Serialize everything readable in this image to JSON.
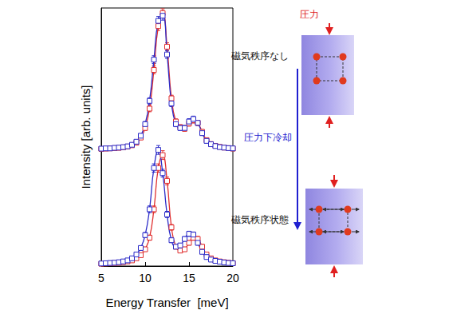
{
  "chart_data": {
    "type": "line",
    "x_label": "Energy Transfer  [meV]",
    "y_label": "Intensity [arb. units]",
    "xlim": [
      5,
      20
    ],
    "xticks": [
      5,
      10,
      15,
      20
    ],
    "ylim": [
      0,
      100
    ],
    "tick_labels": "x",
    "grid": false,
    "marker": "square",
    "line_style": "solid",
    "x": [
      5,
      5.5,
      6,
      6.5,
      7,
      7.5,
      8,
      8.5,
      9,
      9.5,
      10,
      10.5,
      11,
      11.5,
      12,
      12.5,
      13,
      13.5,
      14,
      14.5,
      15,
      15.5,
      16,
      16.5,
      17,
      17.5,
      18,
      18.5,
      19,
      19.5,
      20
    ],
    "series": [
      {
        "color": "#e03030",
        "values": [
          45.4,
          45.5,
          45.6,
          45.7,
          45.8,
          46.0,
          46.3,
          46.8,
          47.8,
          49.8,
          53.5,
          61,
          76,
          93,
          98,
          85,
          65,
          56,
          53.8,
          53.2,
          55.3,
          56.5,
          55.5,
          52,
          48.8,
          47.3,
          46.6,
          46.2,
          45.9,
          45.7,
          45.5
        ],
        "errors": [
          0.5,
          0.5,
          0.5,
          0.5,
          0.5,
          0.5,
          0.6,
          0.6,
          0.7,
          0.8,
          1,
          1.2,
          1.5,
          1.7,
          1.7,
          1.5,
          1.2,
          1,
          1,
          1,
          1.1,
          1.1,
          1,
          0.9,
          0.8,
          0.7,
          0.6,
          0.6,
          0.5,
          0.5,
          0.5
        ]
      },
      {
        "color": "#2b2bc8",
        "values": [
          45.5,
          45.6,
          45.6,
          45.8,
          45.9,
          46.1,
          46.4,
          47,
          48.2,
          50.5,
          55,
          64,
          80,
          95,
          97,
          82,
          63,
          55,
          53.5,
          53.5,
          56,
          57,
          55.5,
          51.5,
          48.5,
          47.2,
          46.5,
          46.1,
          45.9,
          45.7,
          45.6
        ],
        "errors": [
          0.5,
          0.5,
          0.5,
          0.5,
          0.5,
          0.5,
          0.6,
          0.6,
          0.7,
          0.8,
          1,
          1.2,
          1.5,
          1.7,
          1.7,
          1.5,
          1.2,
          1,
          1,
          1,
          1.1,
          1.1,
          1,
          0.9,
          0.8,
          0.7,
          0.6,
          0.6,
          0.5,
          0.5,
          0.5
        ]
      },
      {
        "color": "#e03030",
        "values": [
          0.9,
          1.0,
          1.1,
          1.2,
          1.3,
          1.5,
          1.8,
          2.2,
          3,
          4.2,
          6.5,
          11,
          22,
          38,
          43,
          33,
          15,
          7.5,
          6,
          6.5,
          9,
          11,
          10.5,
          7.5,
          4.5,
          3,
          2.2,
          1.8,
          1.5,
          1.3,
          1.1
        ],
        "errors": [
          0.4,
          0.4,
          0.4,
          0.4,
          0.4,
          0.4,
          0.5,
          0.5,
          0.6,
          0.7,
          0.8,
          1,
          1.3,
          1.6,
          1.7,
          1.5,
          1.1,
          0.9,
          0.8,
          0.8,
          0.9,
          1,
          1,
          0.9,
          0.7,
          0.6,
          0.5,
          0.5,
          0.4,
          0.4,
          0.4
        ]
      },
      {
        "color": "#2b2bc8",
        "values": [
          1.0,
          1.1,
          1.2,
          1.3,
          1.5,
          1.8,
          2.2,
          3,
          4.5,
          7,
          12,
          22,
          38,
          45,
          36,
          20,
          10,
          7.5,
          8,
          10.5,
          12.5,
          12.2,
          9,
          5.5,
          3.5,
          2.5,
          2,
          1.7,
          1.4,
          1.2,
          1.1
        ],
        "errors": [
          0.4,
          0.4,
          0.4,
          0.4,
          0.4,
          0.4,
          0.5,
          0.5,
          0.6,
          0.8,
          1,
          1.3,
          1.6,
          1.7,
          1.5,
          1.2,
          0.9,
          0.8,
          0.8,
          0.9,
          1,
          1,
          0.9,
          0.7,
          0.6,
          0.5,
          0.5,
          0.4,
          0.4,
          0.4,
          0.4
        ]
      }
    ]
  },
  "diagram": {
    "pressure_label": "圧力",
    "top_state": "磁気秩序なし",
    "process": "圧力下冷却",
    "bottom_state": "磁気秩序状態"
  }
}
